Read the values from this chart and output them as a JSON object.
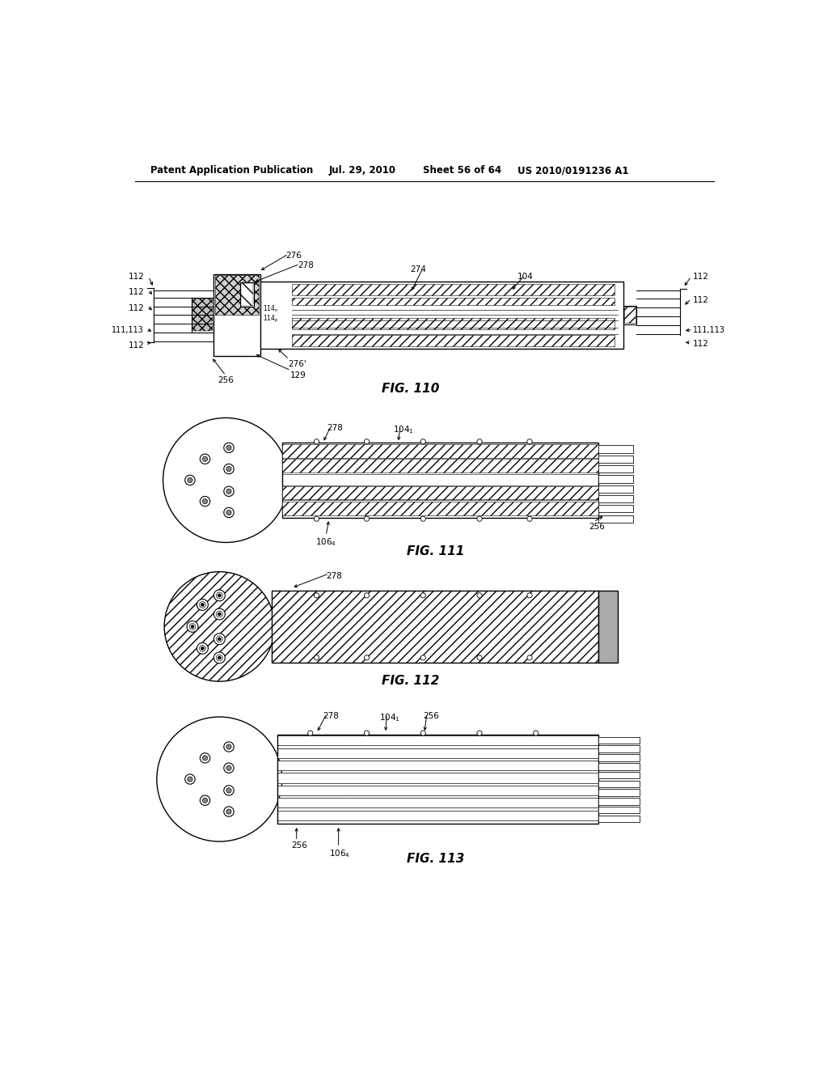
{
  "bg_color": "#ffffff",
  "text_color": "#000000",
  "header_text": "Patent Application Publication",
  "header_date": "Jul. 29, 2010",
  "header_sheet": "Sheet 56 of 64",
  "header_patent": "US 2010/0191236 A1",
  "fig110_label": "FIG. 110",
  "fig111_label": "FIG. 111",
  "fig112_label": "FIG. 112",
  "fig113_label": "FIG. 113"
}
